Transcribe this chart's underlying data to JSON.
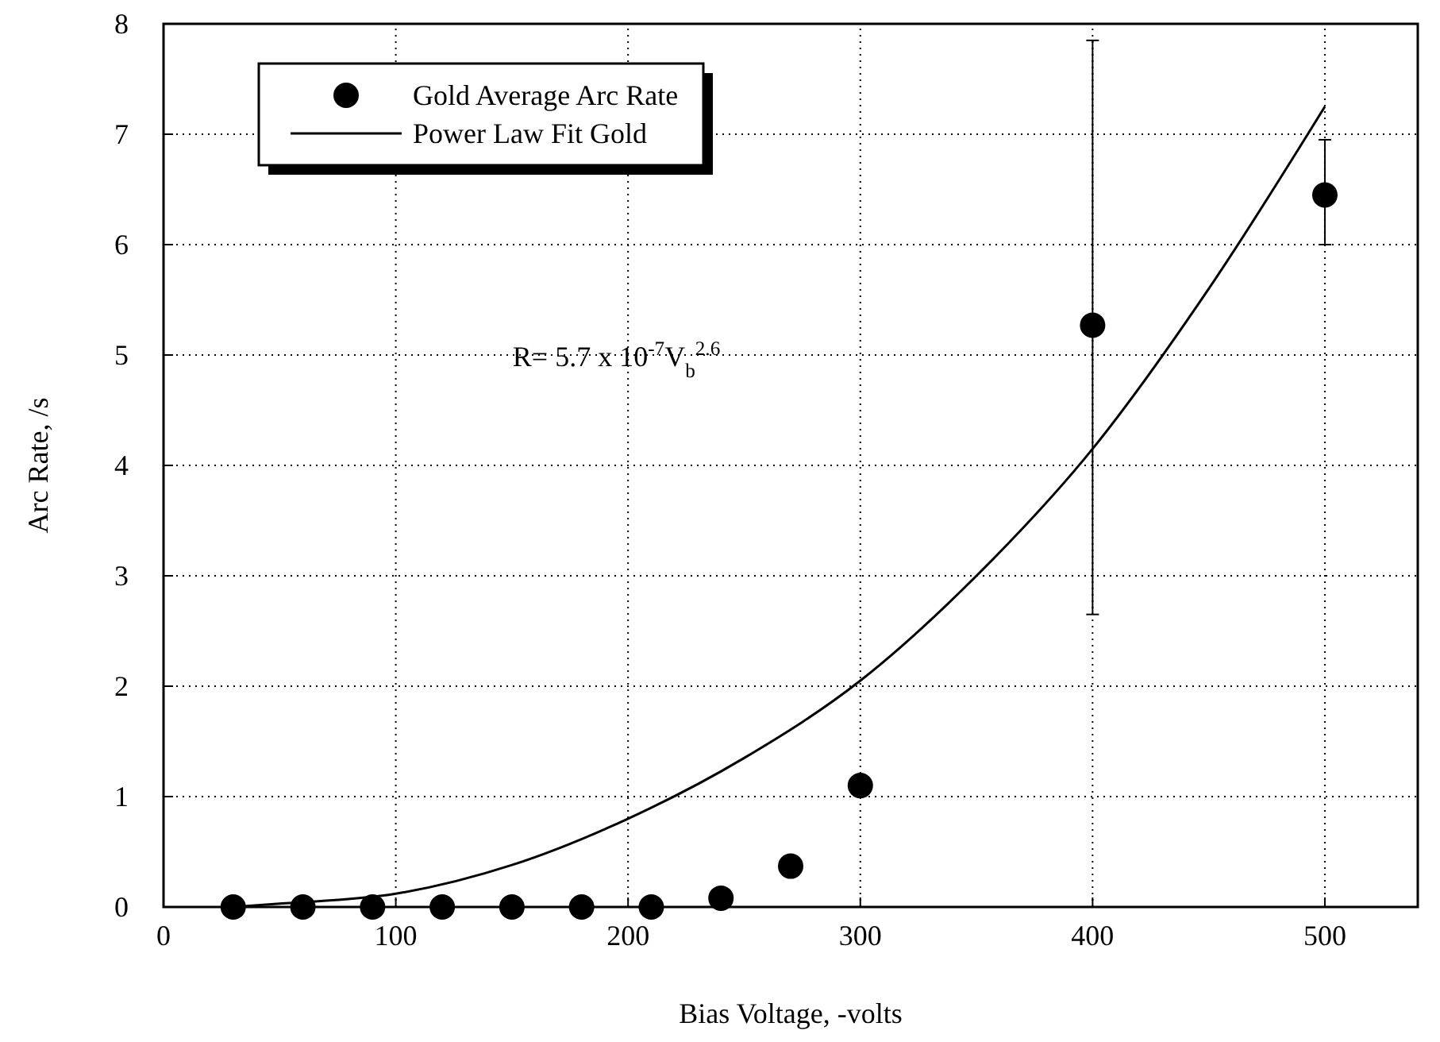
{
  "chart_data": {
    "type": "scatter",
    "xlabel": "Bias Voltage, -volts",
    "ylabel": "Arc Rate, /s",
    "xlim": [
      0,
      540
    ],
    "ylim": [
      0,
      8
    ],
    "xticks": [
      0,
      100,
      200,
      300,
      400,
      500
    ],
    "yticks": [
      0,
      1,
      2,
      3,
      4,
      5,
      6,
      7,
      8
    ],
    "grid": true,
    "legend": "top left",
    "marker": "circle",
    "annotations": [
      "R= 5.7 x 10$^{-7}$V$_{b}$$^{2.6}$"
    ],
    "series": [
      {
        "name": "Gold Average Arc Rate",
        "color": "#000000",
        "x": [
          30,
          60,
          90,
          120,
          150,
          180,
          210,
          240,
          270,
          300,
          400,
          500
        ],
        "values": [
          0,
          0,
          0,
          0,
          0,
          0,
          0,
          0.08,
          0.37,
          1.1,
          5.27,
          6.45
        ],
        "errors": [
          null,
          null,
          null,
          null,
          null,
          null,
          null,
          null,
          null,
          null,
          [
            2.65,
            7.85
          ],
          [
            6.0,
            6.95
          ]
        ]
      },
      {
        "name": "Power Law Fit Gold",
        "type": "line",
        "color": "#000000",
        "marker": "none",
        "line_style": "solid",
        "x": [
          30,
          50,
          100,
          150,
          200,
          250,
          300,
          350,
          400,
          450,
          500
        ],
        "values": [
          0,
          0.03,
          0.12,
          0.38,
          0.8,
          1.35,
          2.05,
          3.0,
          4.15,
          5.6,
          7.25
        ]
      }
    ]
  }
}
